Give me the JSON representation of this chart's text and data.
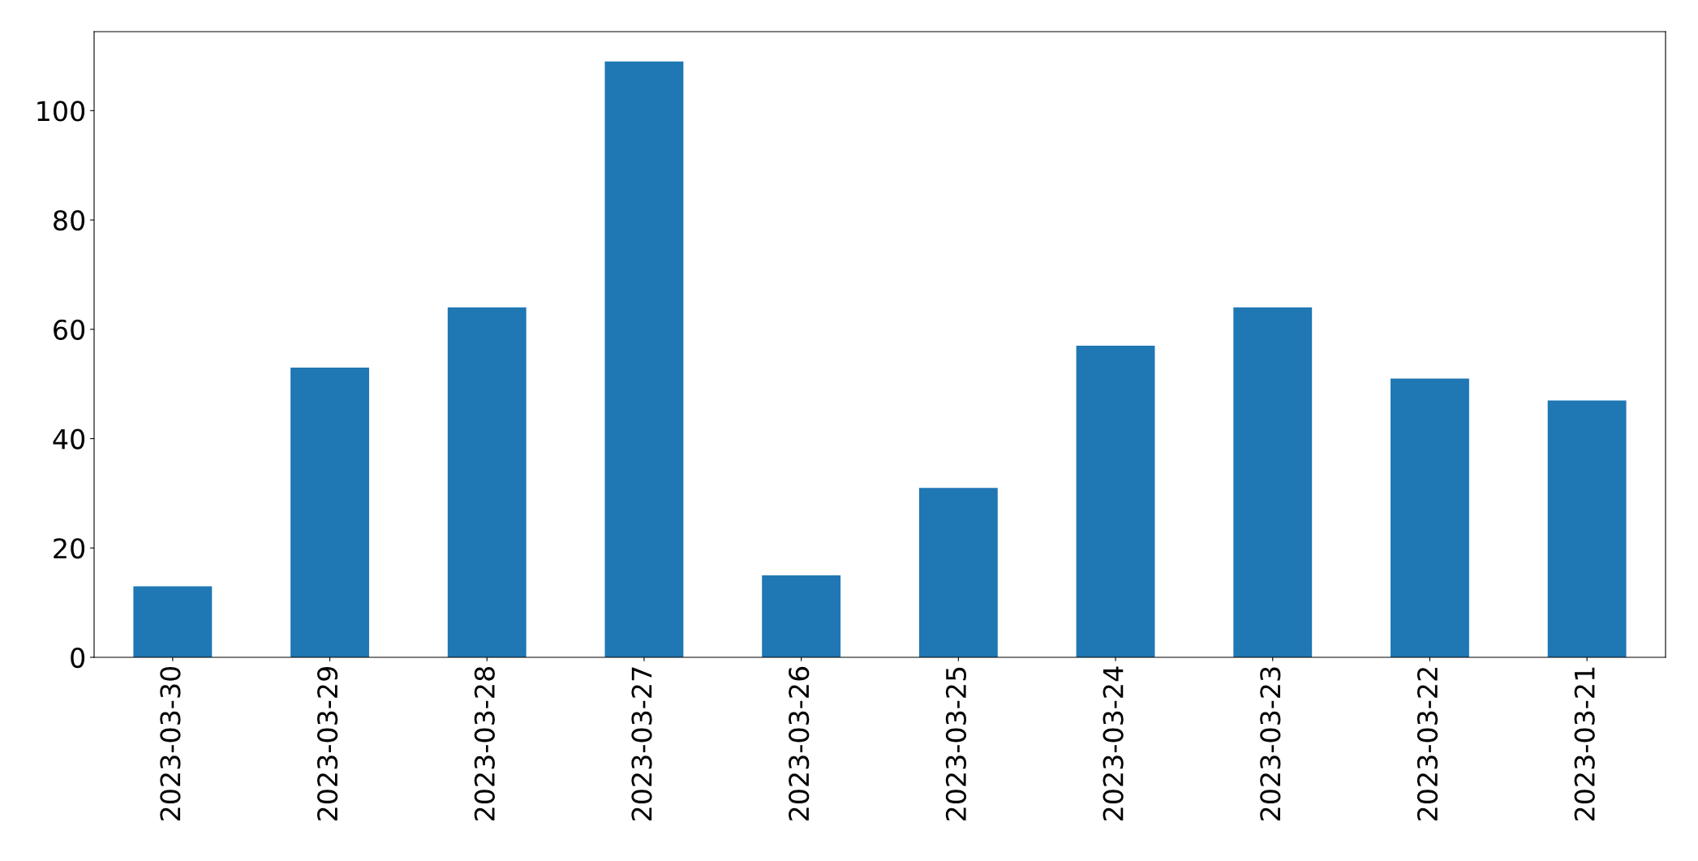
{
  "chart_data": {
    "type": "bar",
    "categories": [
      "2023-03-30",
      "2023-03-29",
      "2023-03-28",
      "2023-03-27",
      "2023-03-26",
      "2023-03-25",
      "2023-03-24",
      "2023-03-23",
      "2023-03-22",
      "2023-03-21"
    ],
    "values": [
      13,
      53,
      64,
      109,
      15,
      31,
      57,
      64,
      51,
      47
    ],
    "color": "#1f77b4",
    "ylim": [
      0,
      114.45
    ],
    "yticks": [
      0,
      20,
      40,
      60,
      80,
      100
    ],
    "grid": false
  }
}
